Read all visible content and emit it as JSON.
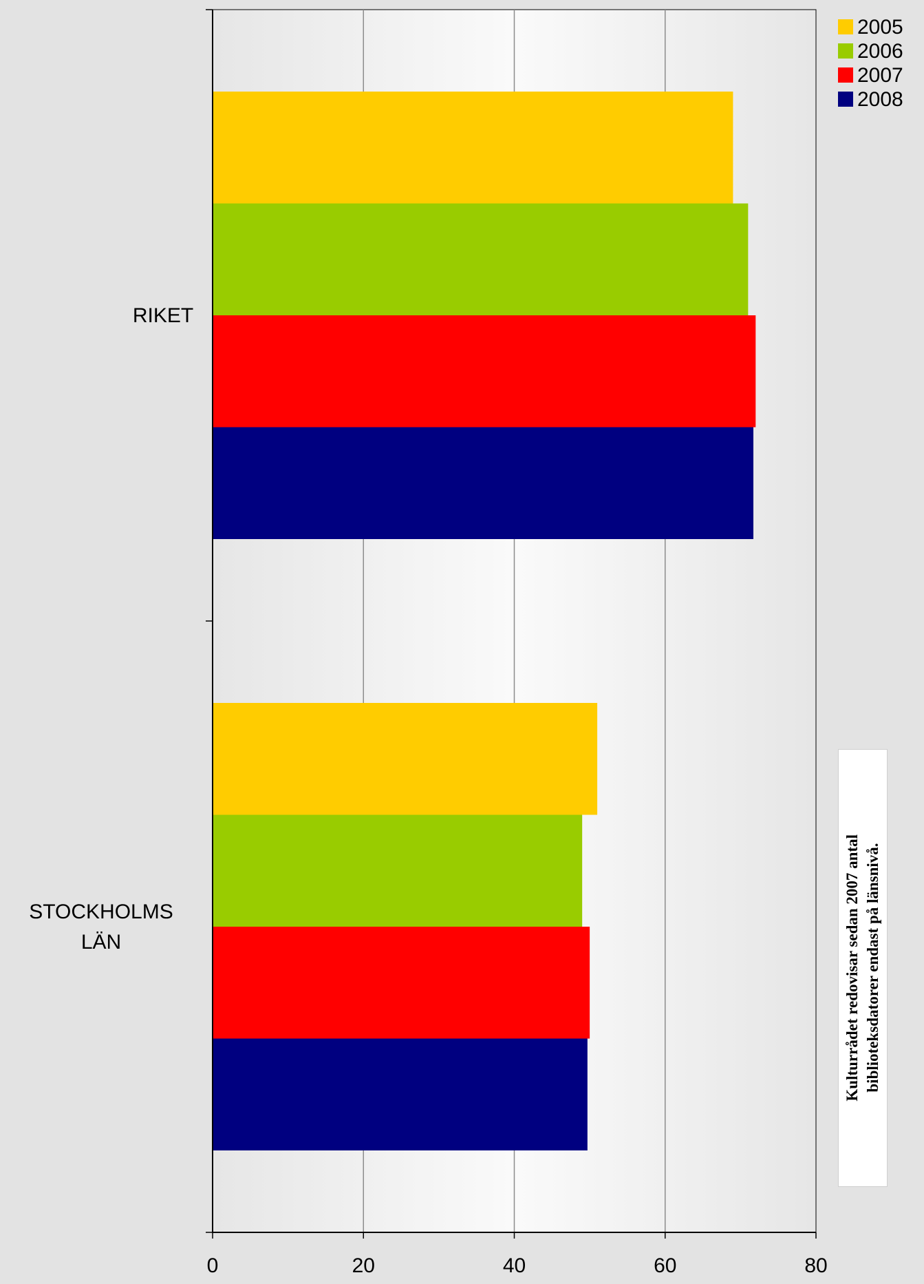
{
  "chart_data": {
    "type": "bar",
    "orientation": "horizontal",
    "categories": [
      "RIKET",
      "STOCKHOLMS LÄN"
    ],
    "category_label_lines": [
      [
        "RIKET"
      ],
      [
        "STOCKHOLMS",
        "LÄN"
      ]
    ],
    "series": [
      {
        "name": "2005",
        "color": "#ffcc00",
        "values": [
          69,
          51
        ]
      },
      {
        "name": "2006",
        "color": "#99cc00",
        "values": [
          71,
          49
        ]
      },
      {
        "name": "2007",
        "color": "#ff0000",
        "values": [
          72,
          50
        ]
      },
      {
        "name": "2008",
        "color": "#000080",
        "values": [
          71.7,
          49.7
        ]
      }
    ],
    "xlim": [
      0,
      80
    ],
    "x_ticks": [
      "0",
      "20",
      "40",
      "60",
      "80"
    ],
    "grid": true,
    "legend": "top-right",
    "title": "",
    "xlabel": "",
    "ylabel": "",
    "annotation": "Kulturrådet redovisar sedan 2007 antal\nbiblioteksdatorer endast på länsnivå."
  }
}
